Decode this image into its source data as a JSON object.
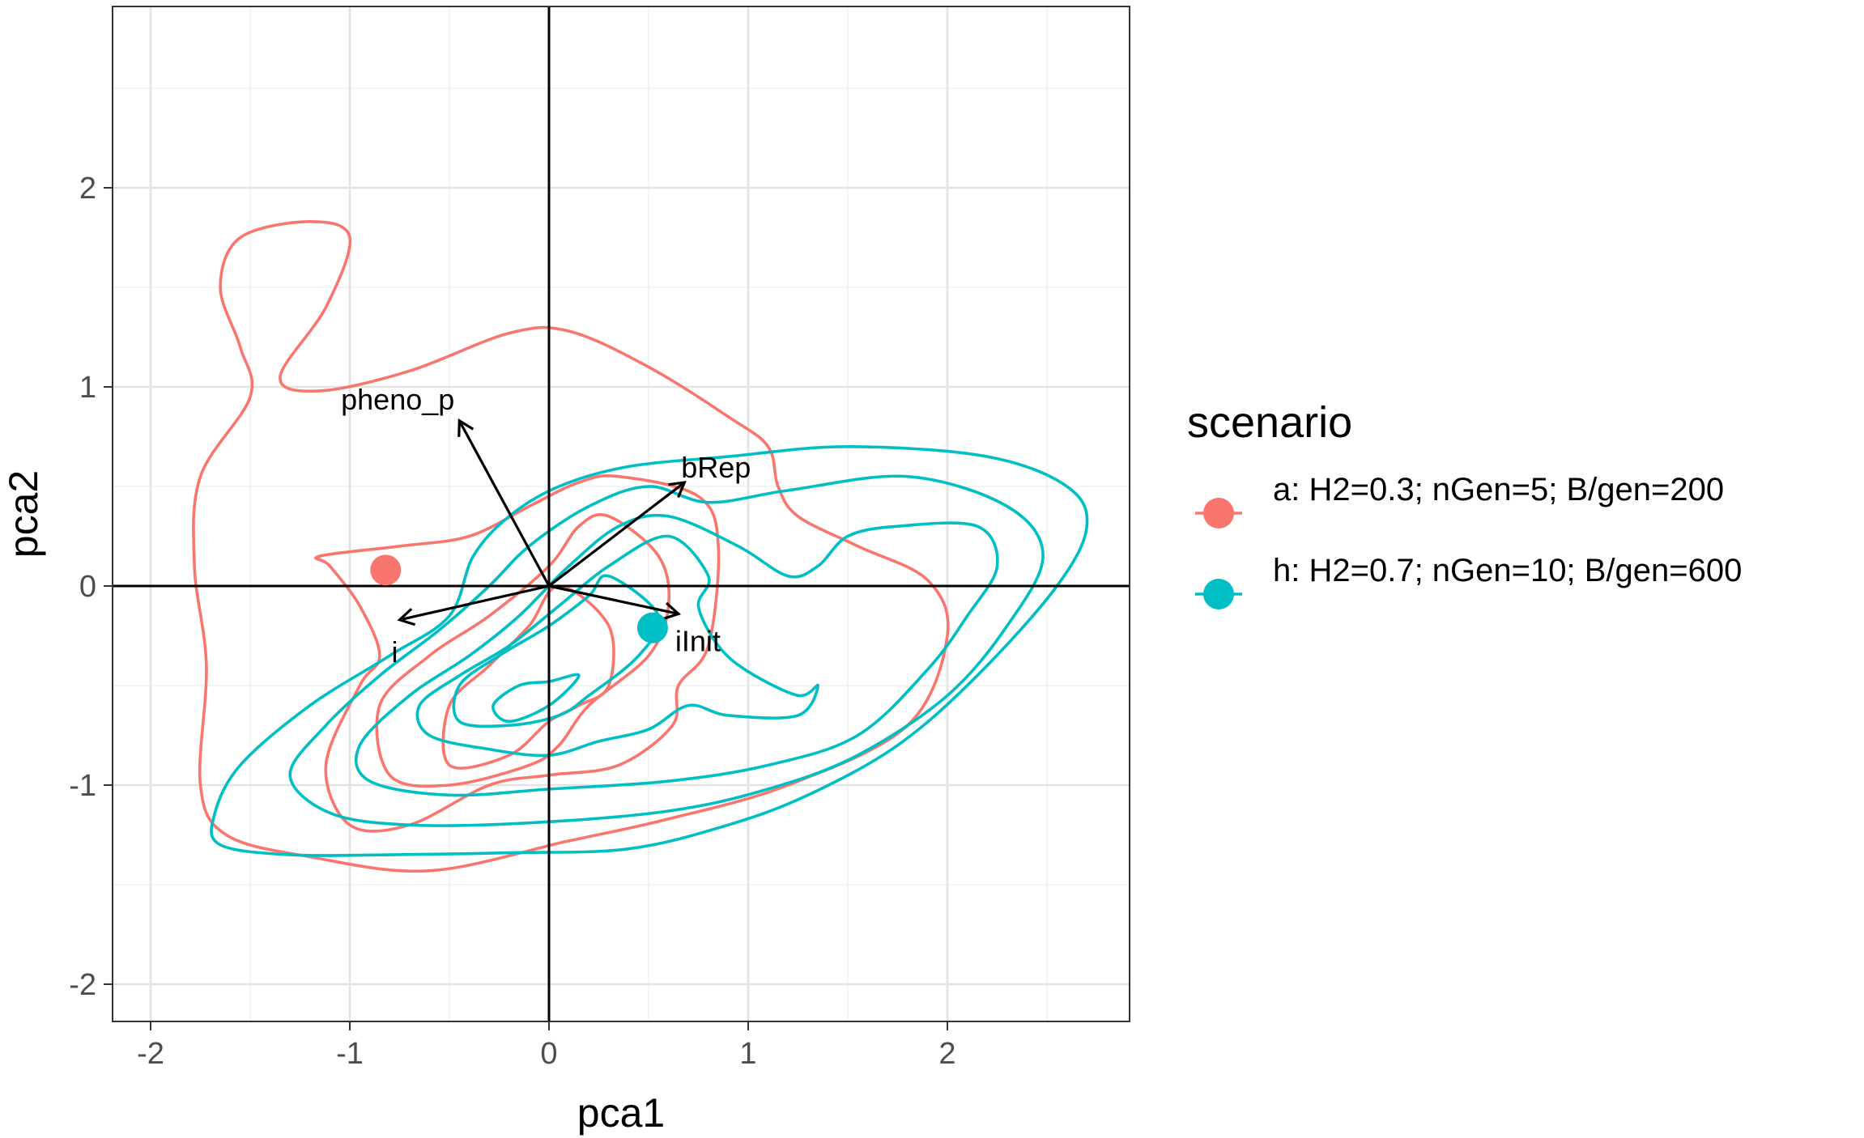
{
  "chart_data": {
    "type": "biplot",
    "xlabel": "pca1",
    "ylabel": "pca2",
    "xlim": [
      -2.2,
      2.9
    ],
    "ylim": [
      -2.2,
      2.9
    ],
    "x_ticks": [
      -2,
      -1,
      0,
      1,
      2
    ],
    "y_ticks": [
      -2,
      -1,
      0,
      1,
      2
    ],
    "x_tick_labels": [
      "-2",
      "-1",
      "0",
      "1",
      "2"
    ],
    "y_tick_labels": [
      "-2",
      "-1",
      "0",
      "1",
      "2"
    ],
    "grid": true,
    "origin_lines": true,
    "legend": {
      "title": "scenario",
      "placement": "right",
      "entries": [
        {
          "key": "a",
          "label": "a: H2=0.3; nGen=5; B/gen=200",
          "color": "#F8766D"
        },
        {
          "key": "h",
          "label": "h: H2=0.7; nGen=10; B/gen=600",
          "color": "#00BFC4"
        }
      ]
    },
    "centroids": [
      {
        "scenario": "a",
        "x": -0.82,
        "y": 0.08
      },
      {
        "scenario": "h",
        "x": 0.52,
        "y": -0.21
      }
    ],
    "loadings": [
      {
        "label": "pheno_p",
        "x": -0.45,
        "y": 0.83
      },
      {
        "label": "bRep",
        "x": 0.68,
        "y": 0.52
      },
      {
        "label": "i",
        "x": -0.75,
        "y": -0.17
      },
      {
        "label": "iInit",
        "x": 0.65,
        "y": -0.14
      }
    ],
    "contours": [
      {
        "scenario": "a",
        "level": 1,
        "points": [
          [
            -0.2,
            1.27
          ],
          [
            0.1,
            1.28
          ],
          [
            0.5,
            1.1
          ],
          [
            0.9,
            0.85
          ],
          [
            1.1,
            0.7
          ],
          [
            1.15,
            0.5
          ],
          [
            1.25,
            0.35
          ],
          [
            1.55,
            0.2
          ],
          [
            1.9,
            0.03
          ],
          [
            2.0,
            -0.25
          ],
          [
            1.8,
            -0.7
          ],
          [
            1.2,
            -1.0
          ],
          [
            0.6,
            -1.17
          ],
          [
            0.1,
            -1.28
          ],
          [
            -0.6,
            -1.43
          ],
          [
            -1.2,
            -1.36
          ],
          [
            -1.62,
            -1.25
          ],
          [
            -1.75,
            -1.0
          ],
          [
            -1.72,
            -0.4
          ],
          [
            -1.78,
            0.1
          ],
          [
            -1.75,
            0.55
          ],
          [
            -1.5,
            0.95
          ],
          [
            -1.55,
            1.2
          ],
          [
            -1.65,
            1.5
          ],
          [
            -1.55,
            1.75
          ],
          [
            -1.2,
            1.83
          ],
          [
            -1.0,
            1.75
          ],
          [
            -1.12,
            1.4
          ],
          [
            -1.35,
            1.05
          ],
          [
            -1.15,
            0.98
          ],
          [
            -0.7,
            1.08
          ]
        ]
      },
      {
        "scenario": "a",
        "level": 2,
        "points": [
          [
            0.15,
            0.52
          ],
          [
            0.35,
            0.55
          ],
          [
            0.75,
            0.45
          ],
          [
            0.85,
            0.2
          ],
          [
            0.8,
            -0.3
          ],
          [
            0.65,
            -0.5
          ],
          [
            0.62,
            -0.7
          ],
          [
            0.35,
            -0.9
          ],
          [
            0.0,
            -0.95
          ],
          [
            -0.3,
            -1.0
          ],
          [
            -0.7,
            -1.2
          ],
          [
            -1.0,
            -1.2
          ],
          [
            -1.12,
            -0.9
          ],
          [
            -0.95,
            -0.5
          ],
          [
            -0.85,
            -0.35
          ],
          [
            -0.95,
            -0.1
          ],
          [
            -1.1,
            0.1
          ],
          [
            -1.15,
            0.15
          ],
          [
            -0.75,
            0.2
          ],
          [
            -0.4,
            0.25
          ],
          [
            -0.1,
            0.4
          ]
        ]
      },
      {
        "scenario": "a",
        "level": 3,
        "points": [
          [
            0.3,
            0.35
          ],
          [
            0.55,
            0.15
          ],
          [
            0.6,
            -0.1
          ],
          [
            0.5,
            -0.35
          ],
          [
            0.2,
            -0.6
          ],
          [
            0.05,
            -0.8
          ],
          [
            -0.1,
            -0.9
          ],
          [
            -0.5,
            -1.0
          ],
          [
            -0.8,
            -0.95
          ],
          [
            -0.85,
            -0.6
          ],
          [
            -0.6,
            -0.35
          ],
          [
            -0.3,
            -0.15
          ],
          [
            0.0,
            0.1
          ],
          [
            0.15,
            0.3
          ]
        ]
      },
      {
        "scenario": "a",
        "level": 4,
        "points": [
          [
            0.05,
            0.0
          ],
          [
            0.3,
            -0.2
          ],
          [
            0.3,
            -0.5
          ],
          [
            0.15,
            -0.6
          ],
          [
            0.0,
            -0.68
          ],
          [
            -0.2,
            -0.85
          ],
          [
            -0.5,
            -0.9
          ],
          [
            -0.5,
            -0.6
          ],
          [
            -0.3,
            -0.4
          ],
          [
            -0.1,
            -0.2
          ]
        ]
      },
      {
        "scenario": "h",
        "level": 1,
        "points": [
          [
            0.4,
            0.6
          ],
          [
            0.9,
            0.65
          ],
          [
            1.5,
            0.7
          ],
          [
            2.2,
            0.65
          ],
          [
            2.6,
            0.5
          ],
          [
            2.7,
            0.3
          ],
          [
            2.55,
            0.0
          ],
          [
            2.15,
            -0.45
          ],
          [
            1.75,
            -0.8
          ],
          [
            1.3,
            -1.05
          ],
          [
            0.9,
            -1.2
          ],
          [
            0.4,
            -1.32
          ],
          [
            -0.2,
            -1.34
          ],
          [
            -0.8,
            -1.35
          ],
          [
            -1.3,
            -1.35
          ],
          [
            -1.65,
            -1.3
          ],
          [
            -1.68,
            -1.15
          ],
          [
            -1.55,
            -0.9
          ],
          [
            -1.2,
            -0.6
          ],
          [
            -0.8,
            -0.35
          ],
          [
            -0.5,
            -0.15
          ],
          [
            -0.38,
            0.15
          ],
          [
            -0.2,
            0.35
          ],
          [
            0.05,
            0.5
          ]
        ]
      },
      {
        "scenario": "h",
        "level": 2,
        "points": [
          [
            0.5,
            0.5
          ],
          [
            0.8,
            0.42
          ],
          [
            1.2,
            0.48
          ],
          [
            1.8,
            0.55
          ],
          [
            2.3,
            0.4
          ],
          [
            2.48,
            0.15
          ],
          [
            2.3,
            -0.2
          ],
          [
            2.0,
            -0.55
          ],
          [
            1.55,
            -0.85
          ],
          [
            1.1,
            -1.02
          ],
          [
            0.6,
            -1.13
          ],
          [
            -0.1,
            -1.19
          ],
          [
            -0.7,
            -1.2
          ],
          [
            -1.1,
            -1.14
          ],
          [
            -1.3,
            -0.95
          ],
          [
            -1.12,
            -0.7
          ],
          [
            -0.85,
            -0.45
          ],
          [
            -0.55,
            -0.22
          ],
          [
            -0.3,
            0.0
          ],
          [
            -0.1,
            0.2
          ],
          [
            0.2,
            0.4
          ]
        ]
      },
      {
        "scenario": "h",
        "level": 3,
        "points": [
          [
            0.6,
            0.35
          ],
          [
            0.95,
            0.2
          ],
          [
            1.2,
            0.05
          ],
          [
            1.35,
            0.1
          ],
          [
            1.5,
            0.25
          ],
          [
            1.75,
            0.3
          ],
          [
            2.15,
            0.3
          ],
          [
            2.25,
            0.1
          ],
          [
            2.1,
            -0.15
          ],
          [
            1.9,
            -0.42
          ],
          [
            1.55,
            -0.75
          ],
          [
            1.1,
            -0.9
          ],
          [
            0.6,
            -0.98
          ],
          [
            0.0,
            -1.02
          ],
          [
            -0.5,
            -1.05
          ],
          [
            -0.9,
            -0.98
          ],
          [
            -0.95,
            -0.8
          ],
          [
            -0.7,
            -0.55
          ],
          [
            -0.4,
            -0.35
          ],
          [
            -0.15,
            -0.15
          ],
          [
            0.1,
            0.1
          ],
          [
            0.35,
            0.3
          ]
        ]
      },
      {
        "scenario": "h",
        "level": 4,
        "points": [
          [
            0.6,
            0.25
          ],
          [
            0.8,
            0.05
          ],
          [
            0.75,
            -0.1
          ],
          [
            0.85,
            -0.3
          ],
          [
            1.0,
            -0.43
          ],
          [
            1.25,
            -0.55
          ],
          [
            1.35,
            -0.5
          ],
          [
            1.25,
            -0.65
          ],
          [
            0.9,
            -0.65
          ],
          [
            0.7,
            -0.6
          ],
          [
            0.5,
            -0.72
          ],
          [
            0.25,
            -0.78
          ],
          [
            0.0,
            -0.85
          ],
          [
            -0.3,
            -0.82
          ],
          [
            -0.6,
            -0.75
          ],
          [
            -0.65,
            -0.6
          ],
          [
            -0.45,
            -0.45
          ],
          [
            -0.2,
            -0.3
          ],
          [
            0.05,
            -0.1
          ],
          [
            0.3,
            0.1
          ]
        ]
      },
      {
        "scenario": "h",
        "level": 5,
        "points": [
          [
            0.3,
            0.05
          ],
          [
            0.55,
            -0.15
          ],
          [
            0.45,
            -0.35
          ],
          [
            0.2,
            -0.55
          ],
          [
            0.05,
            -0.65
          ],
          [
            -0.2,
            -0.7
          ],
          [
            -0.45,
            -0.68
          ],
          [
            -0.45,
            -0.5
          ],
          [
            -0.25,
            -0.35
          ],
          [
            0.0,
            -0.2
          ],
          [
            0.2,
            -0.05
          ]
        ]
      },
      {
        "scenario": "h",
        "level": 6,
        "points": [
          [
            0.15,
            -0.45
          ],
          [
            0.0,
            -0.6
          ],
          [
            -0.2,
            -0.68
          ],
          [
            -0.28,
            -0.6
          ],
          [
            -0.15,
            -0.5
          ],
          [
            0.0,
            -0.48
          ]
        ]
      }
    ]
  }
}
